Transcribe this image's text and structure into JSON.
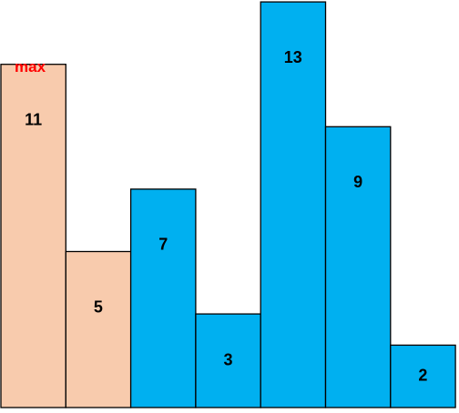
{
  "annotation": {
    "text": "max",
    "color": "#ff0000"
  },
  "colors": {
    "highlight_fill": "#f8cbad",
    "default_fill": "#00b0f0",
    "stroke": "#000000"
  },
  "chart_data": {
    "type": "bar",
    "values": [
      11,
      5,
      7,
      3,
      13,
      9,
      2
    ],
    "highlighted": [
      true,
      true,
      false,
      false,
      false,
      false,
      false
    ],
    "labels": [
      "11",
      "5",
      "7",
      "3",
      "13",
      "9",
      "2"
    ]
  }
}
